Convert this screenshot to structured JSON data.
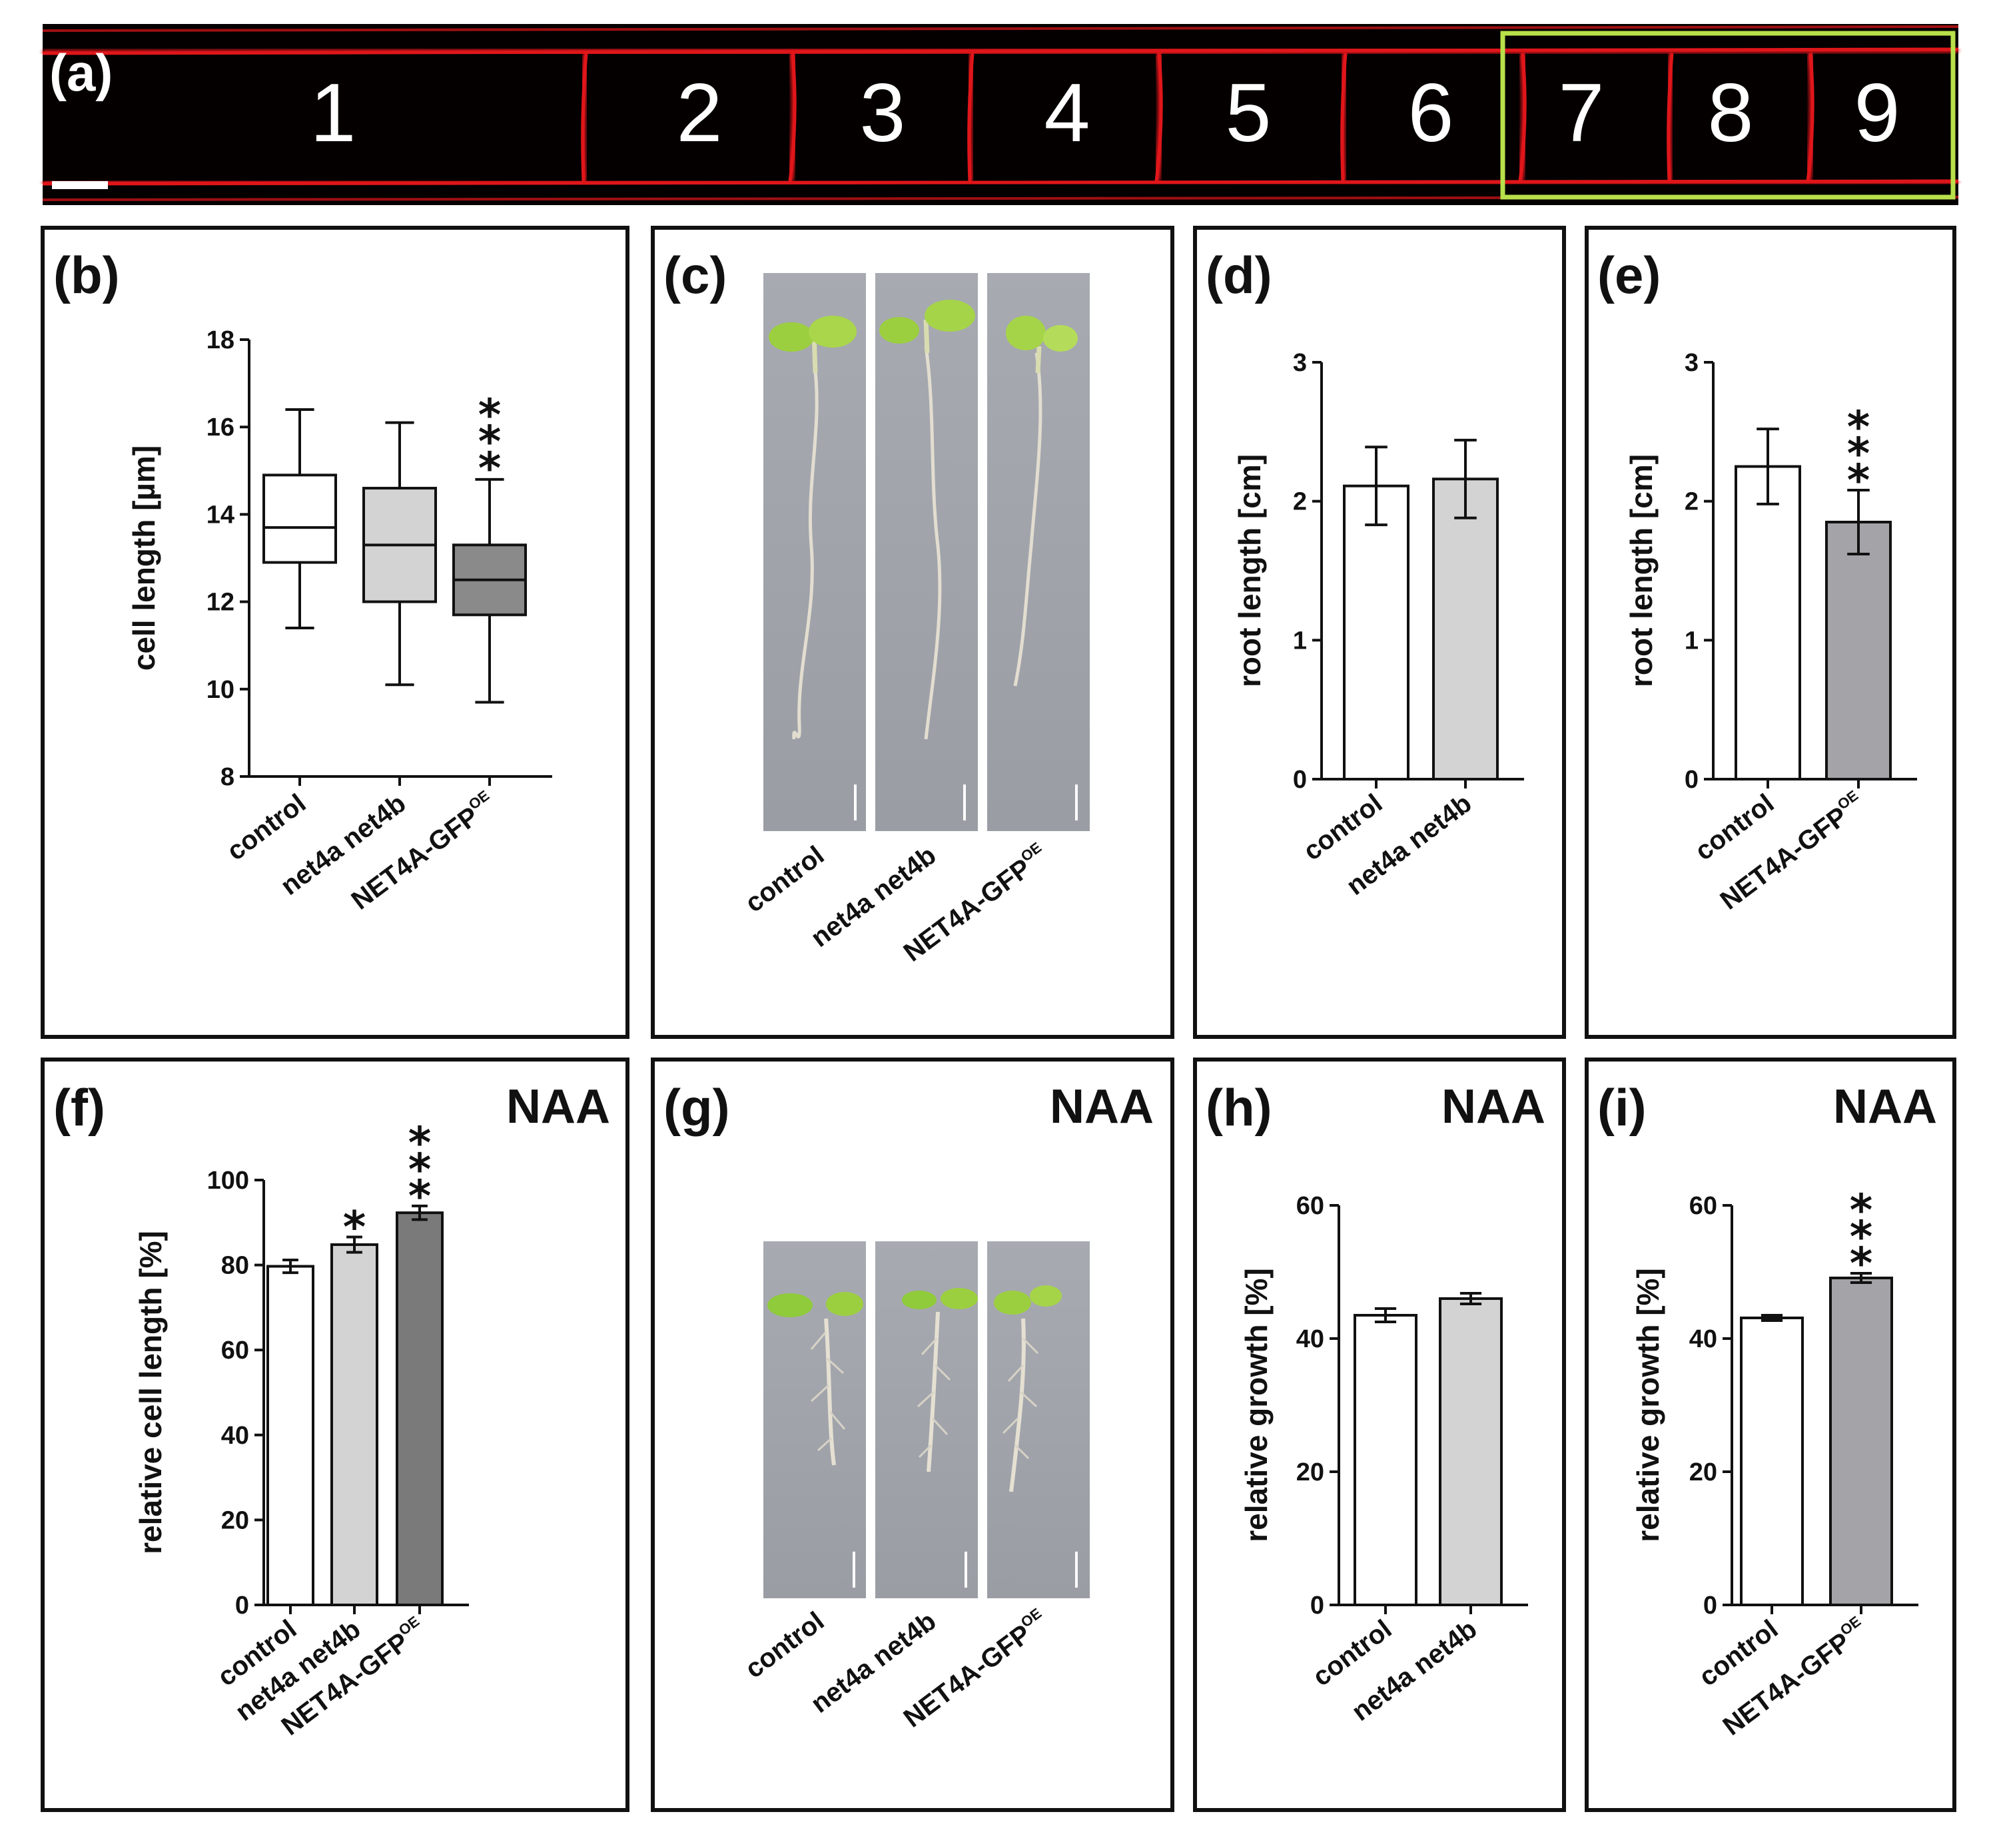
{
  "panel_a": {
    "label": "(a)",
    "cells": [
      "1",
      "2",
      "3",
      "4",
      "5",
      "6",
      "7",
      "8",
      "9"
    ],
    "membrane_color": "#e0161a",
    "highlight_color": "#b8e04a"
  },
  "photo_panels": {
    "c": {
      "label": "(c)",
      "tag": "",
      "categories": [
        {
          "text": "control"
        },
        {
          "text": "net4a net4b"
        },
        {
          "text": "NET4A-GFP",
          "sup": "OE"
        }
      ]
    },
    "g": {
      "label": "(g)",
      "tag": "NAA",
      "categories": [
        {
          "text": "control"
        },
        {
          "text": "net4a net4b"
        },
        {
          "text": "NET4A-GFP",
          "sup": "OE"
        }
      ]
    }
  },
  "chart_data": [
    {
      "id": "b",
      "label": "(b)",
      "tag": "",
      "type": "box",
      "ylabel": "cell length [µm]",
      "ylim": [
        8,
        18
      ],
      "yticks": [
        8,
        10,
        12,
        14,
        16,
        18
      ],
      "categories": [
        {
          "text": "control"
        },
        {
          "text": "net4a net4b"
        },
        {
          "text": "NET4A-GFP",
          "sup": "OE"
        }
      ],
      "boxes": [
        {
          "min": 11.4,
          "q1": 12.9,
          "median": 13.7,
          "q3": 14.9,
          "max": 16.4
        },
        {
          "min": 10.1,
          "q1": 12.0,
          "median": 13.3,
          "q3": 14.6,
          "max": 16.1
        },
        {
          "min": 9.7,
          "q1": 11.7,
          "median": 12.5,
          "q3": 13.3,
          "max": 14.8
        }
      ],
      "fills": [
        "#ffffff",
        "#d3d3d3",
        "#8a8a8a"
      ],
      "significance": [
        "",
        "",
        "***"
      ]
    },
    {
      "id": "d",
      "label": "(d)",
      "tag": "",
      "type": "bar",
      "ylabel": "root length [cm]",
      "ylim": [
        0,
        3
      ],
      "yticks": [
        0,
        1,
        2,
        3
      ],
      "categories": [
        {
          "text": "control"
        },
        {
          "text": "net4a net4b"
        }
      ],
      "values": [
        2.11,
        2.16
      ],
      "errors": [
        0.28,
        0.28
      ],
      "fills": [
        "#ffffff",
        "#d3d3d3"
      ],
      "significance": [
        "",
        ""
      ]
    },
    {
      "id": "e",
      "label": "(e)",
      "tag": "",
      "type": "bar",
      "ylabel": "root length [cm]",
      "ylim": [
        0,
        3
      ],
      "yticks": [
        0,
        1,
        2,
        3
      ],
      "categories": [
        {
          "text": "control"
        },
        {
          "text": "NET4A-GFP",
          "sup": "OE"
        }
      ],
      "values": [
        2.25,
        1.85
      ],
      "errors": [
        0.27,
        0.23
      ],
      "fills": [
        "#ffffff",
        "#a3a3a8"
      ],
      "significance": [
        "",
        "***"
      ]
    },
    {
      "id": "f",
      "label": "(f)",
      "tag": "NAA",
      "type": "bar",
      "ylabel": "relative cell length [%]",
      "ylim": [
        0,
        100
      ],
      "yticks": [
        0,
        20,
        40,
        60,
        80,
        100
      ],
      "categories": [
        {
          "text": "control"
        },
        {
          "text": "net4a net4b"
        },
        {
          "text": "NET4A-GFP",
          "sup": "OE"
        }
      ],
      "values": [
        79.7,
        84.8,
        92.3
      ],
      "errors": [
        1.5,
        1.8,
        1.6
      ],
      "fills": [
        "#ffffff",
        "#d3d3d3",
        "#7a7a7a"
      ],
      "significance": [
        "",
        "*",
        "***"
      ]
    },
    {
      "id": "h",
      "label": "(h)",
      "tag": "NAA",
      "type": "bar",
      "ylabel": "relative growth [%]",
      "ylim": [
        0,
        60
      ],
      "yticks": [
        0,
        20,
        40,
        60
      ],
      "categories": [
        {
          "text": "control"
        },
        {
          "text": "net4a net4b"
        }
      ],
      "values": [
        43.5,
        46.0
      ],
      "errors": [
        1.0,
        0.8
      ],
      "fills": [
        "#ffffff",
        "#d3d3d3"
      ],
      "significance": [
        "",
        ""
      ]
    },
    {
      "id": "i",
      "label": "(i)",
      "tag": "NAA",
      "type": "bar",
      "ylabel": "relative growth [%]",
      "ylim": [
        0,
        60
      ],
      "yticks": [
        0,
        20,
        40,
        60
      ],
      "categories": [
        {
          "text": "control"
        },
        {
          "text": "NET4A-GFP",
          "sup": "OE"
        }
      ],
      "values": [
        43.1,
        49.1
      ],
      "errors": [
        0.4,
        0.7
      ],
      "fills": [
        "#ffffff",
        "#a3a3a8"
      ],
      "significance": [
        "",
        "***"
      ]
    }
  ]
}
